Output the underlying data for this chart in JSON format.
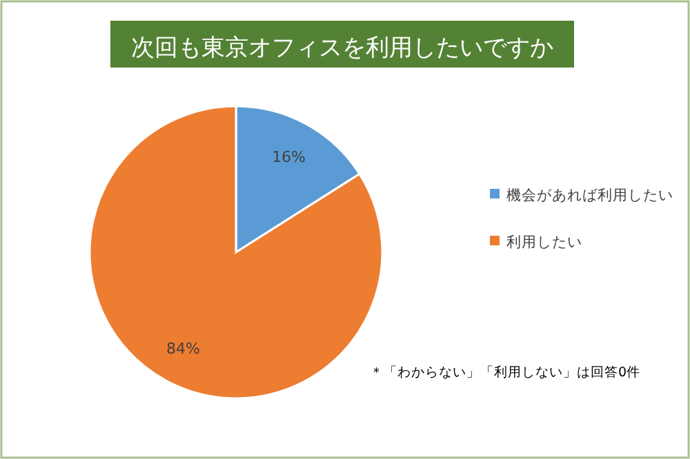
{
  "chart_data": {
    "type": "pie",
    "title": "次回も東京オフィスを利用したいですか",
    "categories": [
      "機会があれば利用したい",
      "利用したい"
    ],
    "values": [
      16,
      84
    ],
    "colors": [
      "#5b9bd5",
      "#ed7d31"
    ],
    "value_labels": [
      "16%",
      "84%"
    ],
    "legend": "right",
    "annotations": [
      "＊「わからない」「利用しない」は回答0件"
    ]
  }
}
